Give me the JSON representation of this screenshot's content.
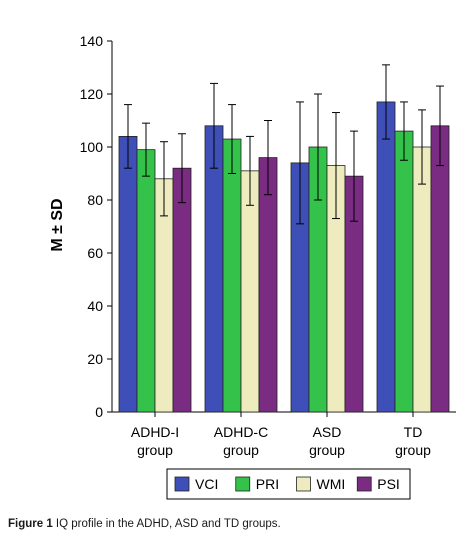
{
  "chart_data": {
    "type": "bar",
    "ylabel": "M ± SD",
    "ylim": [
      0,
      140
    ],
    "yticks": [
      0,
      20,
      40,
      60,
      80,
      100,
      120,
      140
    ],
    "grid": false,
    "legend_position": "bottom",
    "categories": [
      {
        "line1": "ADHD-I",
        "line2": "group"
      },
      {
        "line1": "ADHD-C",
        "line2": "group"
      },
      {
        "line1": "ASD",
        "line2": "group"
      },
      {
        "line1": "TD",
        "line2": "group"
      }
    ],
    "series": [
      {
        "name": "VCI",
        "color": "#3f4fb8",
        "values": [
          104,
          108,
          94,
          117
        ],
        "error": [
          12,
          16,
          23,
          14
        ]
      },
      {
        "name": "PRI",
        "color": "#34c24a",
        "values": [
          99,
          103,
          100,
          106
        ],
        "error": [
          10,
          13,
          20,
          11
        ]
      },
      {
        "name": "WMI",
        "color": "#eeecbe",
        "values": [
          88,
          91,
          93,
          100
        ],
        "error": [
          14,
          13,
          20,
          14
        ]
      },
      {
        "name": "PSI",
        "color": "#7a2b82",
        "values": [
          92,
          96,
          89,
          108
        ],
        "error": [
          13,
          14,
          17,
          15
        ]
      }
    ]
  },
  "caption": {
    "label": "Figure 1",
    "text": " IQ profile in the ADHD, ASD and TD groups."
  }
}
